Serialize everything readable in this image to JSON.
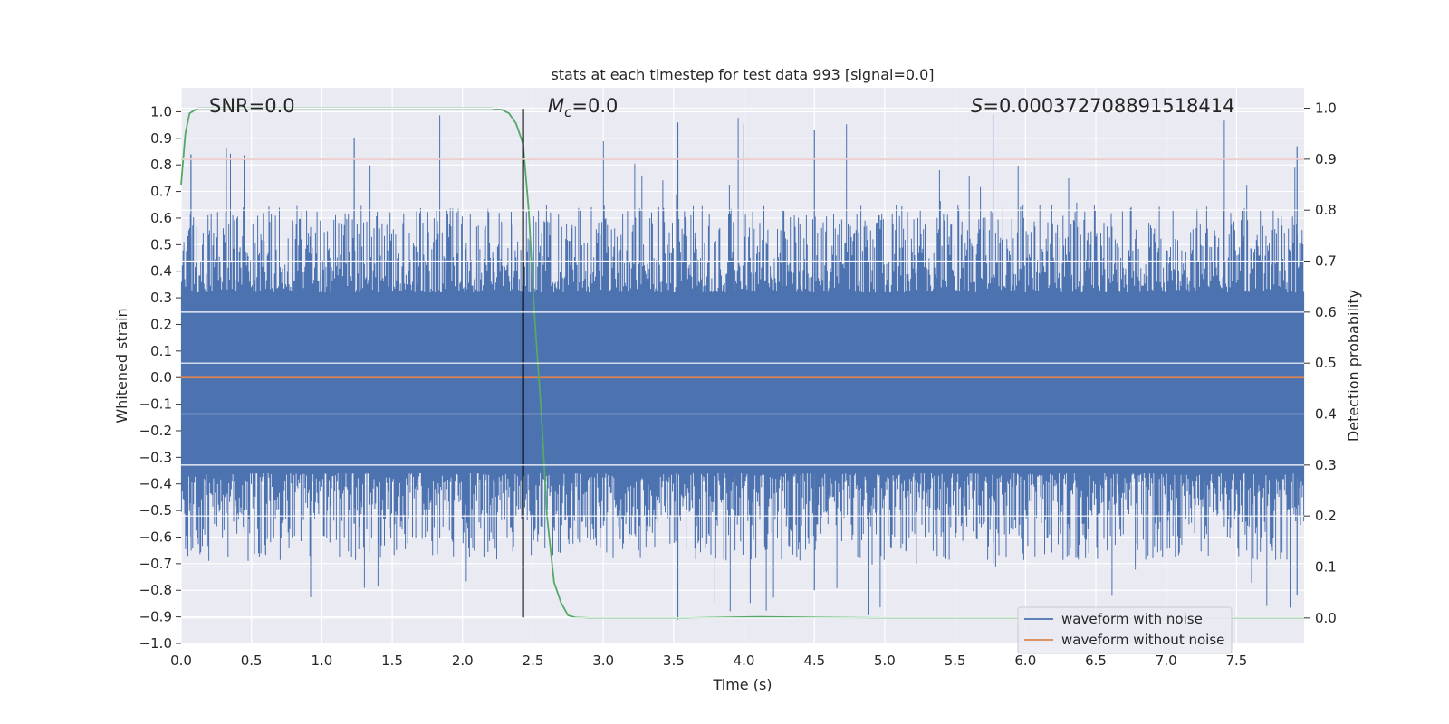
{
  "chart_data": {
    "type": "line",
    "title": "stats at each timestep for test data 993 [signal=0.0]",
    "xlabel": "Time (s)",
    "ylabel": "Whitened strain",
    "ylabel_right": "Detection probability",
    "xlim": [
      0.0,
      7.98
    ],
    "ylim": [
      -1.0,
      1.09
    ],
    "ylim_right": [
      -0.05,
      1.04
    ],
    "x_ticks": [
      "0.0",
      "0.5",
      "1.0",
      "1.5",
      "2.0",
      "2.5",
      "3.0",
      "3.5",
      "4.0",
      "4.5",
      "5.0",
      "5.5",
      "6.0",
      "6.5",
      "7.0",
      "7.5"
    ],
    "x_tick_values": [
      0.0,
      0.5,
      1.0,
      1.5,
      2.0,
      2.5,
      3.0,
      3.5,
      4.0,
      4.5,
      5.0,
      5.5,
      6.0,
      6.5,
      7.0,
      7.5
    ],
    "y_ticks": [
      "1.0",
      "0.9",
      "0.8",
      "0.7",
      "0.6",
      "0.5",
      "0.4",
      "0.3",
      "0.2",
      "0.1",
      "0.0",
      "−0.1",
      "−0.2",
      "−0.3",
      "−0.4",
      "−0.5",
      "−0.6",
      "−0.7",
      "−0.8",
      "−0.9",
      "−1.0"
    ],
    "y_tick_values": [
      1.0,
      0.9,
      0.8,
      0.7,
      0.6,
      0.5,
      0.4,
      0.3,
      0.2,
      0.1,
      0.0,
      -0.1,
      -0.2,
      -0.3,
      -0.4,
      -0.5,
      -0.6,
      -0.7,
      -0.8,
      -0.9,
      -1.0
    ],
    "y_ticks_right": [
      "1.0",
      "0.9",
      "0.8",
      "0.7",
      "0.6",
      "0.5",
      "0.4",
      "0.3",
      "0.2",
      "0.1",
      "0.0"
    ],
    "y_tick_values_right": [
      1.0,
      0.9,
      0.8,
      0.7,
      0.6,
      0.5,
      0.4,
      0.3,
      0.2,
      0.1,
      0.0
    ],
    "annotations": {
      "snr": "SNR=0.0",
      "mc_symbol": "M",
      "mc_sub": "c",
      "mc_value": "=0.0",
      "s_symbol": "S",
      "s_value": "=0.000372708891518414"
    },
    "threshold": 0.9,
    "detection_time": 2.43,
    "series": [
      {
        "name": "waveform with noise",
        "color": "#4c72b0",
        "noise_band": {
          "core": [
            -0.36,
            0.32
          ],
          "typical_peak": [
            0.35,
            0.65
          ],
          "max": 0.99,
          "min": -0.91
        }
      },
      {
        "name": "waveform without noise",
        "color": "#dd8452",
        "values": 0.0
      },
      {
        "name": "detection probability",
        "color": "#55a868",
        "x": [
          0.0,
          0.03,
          0.06,
          0.12,
          0.2,
          0.5,
          1.0,
          1.5,
          2.0,
          2.2,
          2.28,
          2.33,
          2.38,
          2.43,
          2.47,
          2.51,
          2.56,
          2.6,
          2.65,
          2.7,
          2.75,
          2.8,
          2.9,
          3.2,
          3.6,
          4.1,
          4.5,
          5.0,
          6.0,
          7.0,
          7.98
        ],
        "values": [
          0.85,
          0.95,
          0.99,
          1.0,
          1.0,
          1.0,
          1.0,
          1.0,
          1.0,
          1.0,
          0.997,
          0.99,
          0.97,
          0.93,
          0.8,
          0.6,
          0.4,
          0.2,
          0.07,
          0.03,
          0.005,
          0.001,
          0.0,
          0.0,
          0.0,
          0.002,
          0.001,
          0.0,
          0.0,
          0.0,
          0.0
        ]
      },
      {
        "name": "threshold",
        "color": "#c44e52",
        "values": 0.9
      }
    ],
    "legend": {
      "position": "lower-right",
      "entries": [
        {
          "label": "waveform with noise",
          "color": "#4c72b0"
        },
        {
          "label": "waveform without noise",
          "color": "#dd8452"
        }
      ]
    },
    "grid": true,
    "colors": {
      "plot_bg": "#eaeaf2",
      "grid": "#ffffff",
      "text": "#262626",
      "vline": "#000000"
    }
  }
}
